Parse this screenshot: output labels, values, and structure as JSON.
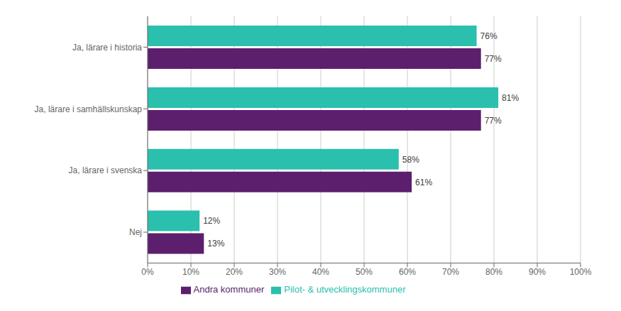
{
  "chart_data": {
    "type": "bar",
    "orientation": "horizontal",
    "categories": [
      "Nej",
      "Ja, lärare i svenska",
      "Ja, lärare i samhällskunskap",
      "Ja, lärare i historia"
    ],
    "series": [
      {
        "name": "Pilot- & utvecklingskommuner",
        "color": "#2bbfad",
        "values": [
          12,
          58,
          81,
          76
        ],
        "value_labels": [
          "12%",
          "58%",
          "81%",
          "76%"
        ]
      },
      {
        "name": "Andra kommuner",
        "color": "#5c1f6e",
        "values": [
          13,
          61,
          77,
          77
        ],
        "value_labels": [
          "13%",
          "61%",
          "77%",
          "77%"
        ]
      }
    ],
    "xlim": [
      0,
      100
    ],
    "xticks": [
      {
        "value": 0,
        "label": "0%"
      },
      {
        "value": 10,
        "label": "10%"
      },
      {
        "value": 20,
        "label": "20%"
      },
      {
        "value": 30,
        "label": "30%"
      },
      {
        "value": 40,
        "label": "40%"
      },
      {
        "value": 50,
        "label": "50%"
      },
      {
        "value": 60,
        "label": "60%"
      },
      {
        "value": 70,
        "label": "70%"
      },
      {
        "value": 80,
        "label": "80%"
      },
      {
        "value": 90,
        "label": "90%"
      },
      {
        "value": 100,
        "label": "100%"
      }
    ],
    "grid": true,
    "data_labels": true,
    "legend": "bottom"
  }
}
